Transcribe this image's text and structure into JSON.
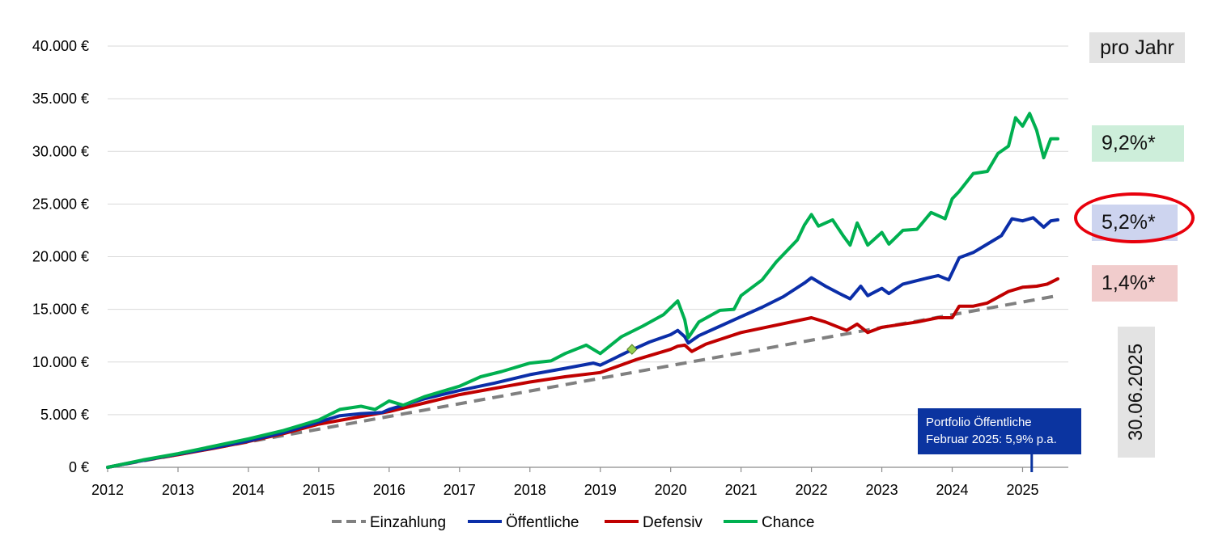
{
  "chart_data": {
    "type": "line",
    "title": "",
    "xlabel": "",
    "ylabel": "",
    "xlim": [
      2012,
      2025.65
    ],
    "ylim": [
      0,
      40000
    ],
    "x_ticks": [
      "2012",
      "2013",
      "2014",
      "2015",
      "2016",
      "2017",
      "2018",
      "2019",
      "2020",
      "2021",
      "2022",
      "2023",
      "2024",
      "2025"
    ],
    "y_ticks": [
      "0 €",
      "5.000 €",
      "10.000 €",
      "15.000 €",
      "20.000 €",
      "25.000 €",
      "30.000 €",
      "35.000 €",
      "40.000 €"
    ],
    "grid": "horizontal",
    "legend_position": "bottom",
    "series": [
      {
        "name": "Einzahlung",
        "color": "#808080",
        "style": "dashed",
        "points": [
          [
            2012,
            0
          ],
          [
            2025.5,
            16300
          ]
        ]
      },
      {
        "name": "Öffentliche",
        "color": "#0b2ea8",
        "style": "solid",
        "points": [
          [
            2012,
            0
          ],
          [
            2012.5,
            650
          ],
          [
            2013,
            1250
          ],
          [
            2013.5,
            1850
          ],
          [
            2014,
            2500
          ],
          [
            2014.5,
            3300
          ],
          [
            2015,
            4300
          ],
          [
            2015.3,
            4900
          ],
          [
            2015.6,
            5100
          ],
          [
            2015.9,
            5200
          ],
          [
            2016,
            5500
          ],
          [
            2016.5,
            6500
          ],
          [
            2017,
            7300
          ],
          [
            2017.5,
            8000
          ],
          [
            2018,
            8800
          ],
          [
            2018.5,
            9400
          ],
          [
            2018.9,
            9900
          ],
          [
            2019,
            9700
          ],
          [
            2019.4,
            11000
          ],
          [
            2019.7,
            11900
          ],
          [
            2020,
            12600
          ],
          [
            2020.1,
            13000
          ],
          [
            2020.2,
            12400
          ],
          [
            2020.25,
            11800
          ],
          [
            2020.4,
            12500
          ],
          [
            2020.7,
            13400
          ],
          [
            2021,
            14300
          ],
          [
            2021.3,
            15200
          ],
          [
            2021.6,
            16200
          ],
          [
            2021.9,
            17500
          ],
          [
            2022,
            18000
          ],
          [
            2022.2,
            17200
          ],
          [
            2022.4,
            16500
          ],
          [
            2022.55,
            16000
          ],
          [
            2022.7,
            17200
          ],
          [
            2022.8,
            16300
          ],
          [
            2023,
            17000
          ],
          [
            2023.1,
            16500
          ],
          [
            2023.3,
            17400
          ],
          [
            2023.6,
            17900
          ],
          [
            2023.8,
            18200
          ],
          [
            2023.95,
            17800
          ],
          [
            2024.1,
            19900
          ],
          [
            2024.3,
            20400
          ],
          [
            2024.5,
            21200
          ],
          [
            2024.7,
            22000
          ],
          [
            2024.85,
            23600
          ],
          [
            2025,
            23400
          ],
          [
            2025.15,
            23700
          ],
          [
            2025.3,
            22800
          ],
          [
            2025.4,
            23400
          ],
          [
            2025.5,
            23500
          ]
        ]
      },
      {
        "name": "Defensiv",
        "color": "#c00000",
        "style": "solid",
        "points": [
          [
            2012,
            0
          ],
          [
            2012.5,
            650
          ],
          [
            2013,
            1200
          ],
          [
            2013.5,
            1800
          ],
          [
            2014,
            2450
          ],
          [
            2014.5,
            3200
          ],
          [
            2015,
            4100
          ],
          [
            2015.5,
            4700
          ],
          [
            2016,
            5300
          ],
          [
            2016.5,
            6100
          ],
          [
            2017,
            6900
          ],
          [
            2017.5,
            7500
          ],
          [
            2018,
            8100
          ],
          [
            2018.5,
            8600
          ],
          [
            2019,
            9000
          ],
          [
            2019.5,
            10200
          ],
          [
            2020,
            11200
          ],
          [
            2020.1,
            11500
          ],
          [
            2020.2,
            11600
          ],
          [
            2020.3,
            11000
          ],
          [
            2020.5,
            11700
          ],
          [
            2021,
            12800
          ],
          [
            2021.5,
            13500
          ],
          [
            2022,
            14200
          ],
          [
            2022.2,
            13800
          ],
          [
            2022.5,
            13000
          ],
          [
            2022.65,
            13600
          ],
          [
            2022.8,
            12800
          ],
          [
            2023,
            13300
          ],
          [
            2023.5,
            13800
          ],
          [
            2023.8,
            14200
          ],
          [
            2024,
            14200
          ],
          [
            2024.1,
            15300
          ],
          [
            2024.3,
            15300
          ],
          [
            2024.5,
            15600
          ],
          [
            2024.8,
            16700
          ],
          [
            2025,
            17100
          ],
          [
            2025.2,
            17200
          ],
          [
            2025.35,
            17400
          ],
          [
            2025.5,
            17900
          ]
        ]
      },
      {
        "name": "Chance",
        "color": "#00b050",
        "style": "solid",
        "points": [
          [
            2012,
            0
          ],
          [
            2012.5,
            700
          ],
          [
            2013,
            1300
          ],
          [
            2013.5,
            2000
          ],
          [
            2014,
            2700
          ],
          [
            2014.5,
            3500
          ],
          [
            2015,
            4500
          ],
          [
            2015.3,
            5500
          ],
          [
            2015.6,
            5800
          ],
          [
            2015.8,
            5500
          ],
          [
            2016,
            6300
          ],
          [
            2016.2,
            5900
          ],
          [
            2016.5,
            6700
          ],
          [
            2017,
            7700
          ],
          [
            2017.3,
            8600
          ],
          [
            2017.6,
            9100
          ],
          [
            2018,
            9900
          ],
          [
            2018.3,
            10100
          ],
          [
            2018.5,
            10800
          ],
          [
            2018.8,
            11600
          ],
          [
            2019,
            10800
          ],
          [
            2019.3,
            12400
          ],
          [
            2019.6,
            13400
          ],
          [
            2019.9,
            14500
          ],
          [
            2020.1,
            15800
          ],
          [
            2020.2,
            14000
          ],
          [
            2020.25,
            12300
          ],
          [
            2020.4,
            13800
          ],
          [
            2020.7,
            14900
          ],
          [
            2020.9,
            15000
          ],
          [
            2021,
            16300
          ],
          [
            2021.3,
            17800
          ],
          [
            2021.5,
            19500
          ],
          [
            2021.8,
            21600
          ],
          [
            2021.9,
            23000
          ],
          [
            2022,
            24000
          ],
          [
            2022.1,
            22900
          ],
          [
            2022.3,
            23500
          ],
          [
            2022.45,
            22000
          ],
          [
            2022.55,
            21100
          ],
          [
            2022.65,
            23200
          ],
          [
            2022.8,
            21100
          ],
          [
            2023,
            22300
          ],
          [
            2023.1,
            21200
          ],
          [
            2023.3,
            22500
          ],
          [
            2023.5,
            22600
          ],
          [
            2023.7,
            24200
          ],
          [
            2023.9,
            23600
          ],
          [
            2024,
            25500
          ],
          [
            2024.1,
            26200
          ],
          [
            2024.3,
            27900
          ],
          [
            2024.5,
            28100
          ],
          [
            2024.65,
            29800
          ],
          [
            2024.8,
            30500
          ],
          [
            2024.9,
            33200
          ],
          [
            2025,
            32400
          ],
          [
            2025.1,
            33600
          ],
          [
            2025.2,
            32000
          ],
          [
            2025.3,
            29400
          ],
          [
            2025.4,
            31200
          ],
          [
            2025.5,
            31200
          ]
        ]
      }
    ],
    "marker": {
      "x": 2019.45,
      "y": 11200,
      "color": "#92d050"
    },
    "legend": [
      "Einzahlung",
      "Öffentliche",
      "Defensiv",
      "Chance"
    ],
    "side_labels": {
      "header": "pro Jahr",
      "chance": "9,2%*",
      "oeffentliche": "5,2%*",
      "defensiv": "1,4%*",
      "date": "30.06.2025"
    },
    "annotation": {
      "line1": "Portfolio Öffentliche",
      "line2": "Februar 2025: 5,9% p.a.",
      "x": 2025.13
    },
    "colors": {
      "grid": "#d9d9d9",
      "axis": "#8c8c8c",
      "annotation_bg": "#0b34a0",
      "highlight": "#e8000c"
    }
  }
}
